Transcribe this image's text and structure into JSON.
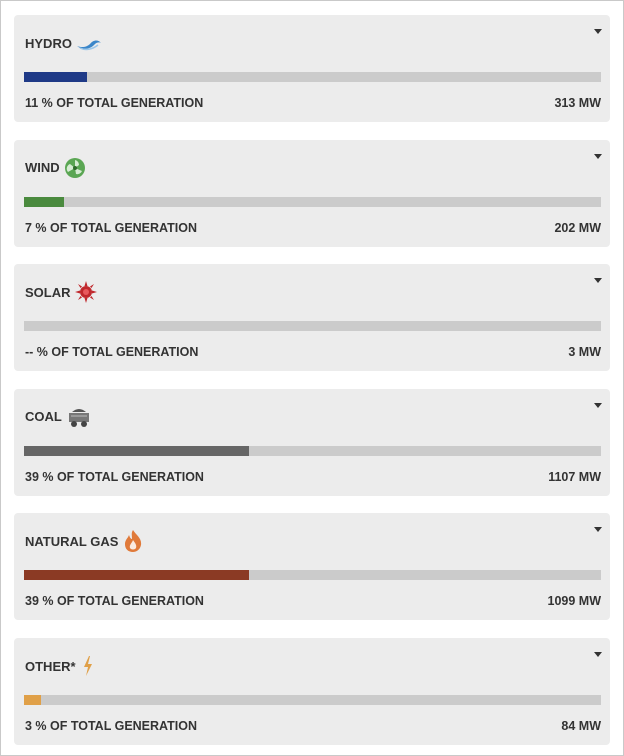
{
  "sources": [
    {
      "name": "HYDRO",
      "share": 11,
      "share_label": "11 % OF TOTAL GENERATION",
      "output": "313 MW",
      "color": "#1f3a87"
    },
    {
      "name": "WIND",
      "share": 7,
      "share_label": "7 % OF TOTAL GENERATION",
      "output": "202 MW",
      "color": "#4a8a3e"
    },
    {
      "name": "SOLAR",
      "share": null,
      "share_label": "-- % OF TOTAL GENERATION",
      "output": "3 MW",
      "color": "#c0282d"
    },
    {
      "name": "COAL",
      "share": 39,
      "share_label": "39 % OF TOTAL GENERATION",
      "output": "1107 MW",
      "color": "#666666"
    },
    {
      "name": "NATURAL GAS",
      "share": 39,
      "share_label": "39 % OF TOTAL GENERATION",
      "output": "1099 MW",
      "color": "#8b3a24"
    },
    {
      "name": "OTHER*",
      "share": 3,
      "share_label": "3 % OF TOTAL GENERATION",
      "output": "84 MW",
      "color": "#e0a048"
    }
  ]
}
